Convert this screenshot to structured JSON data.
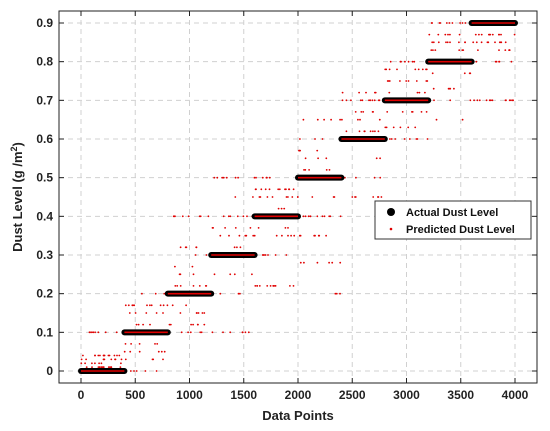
{
  "chart_data": {
    "type": "scatter",
    "title": "",
    "xlabel": "Data Points",
    "ylabel": "Dust Level (g /m",
    "ylabel_superscript": "2",
    "ylabel_suffix": ")",
    "xlim": [
      0,
      4000
    ],
    "ylim": [
      0,
      0.9
    ],
    "x_ticks": [
      0,
      500,
      1000,
      1500,
      2000,
      2500,
      3000,
      3500,
      4000
    ],
    "x_tick_labels": [
      "0",
      "500",
      "1000",
      "1500",
      "2000",
      "2500",
      "3000",
      "3500",
      "4000"
    ],
    "y_ticks": [
      0,
      0.1,
      0.2,
      0.3,
      0.4,
      0.5,
      0.6,
      0.7,
      0.8,
      0.9
    ],
    "y_tick_labels": [
      "0",
      "0.1",
      "0.2",
      "0.3",
      "0.4",
      "0.5",
      "0.6",
      "0.7",
      "0.8",
      "0.9"
    ],
    "grid": true,
    "legend_position": "right",
    "series": [
      {
        "name": "Actual Dust Level",
        "color": "#000000",
        "marker": "circle",
        "segments": [
          {
            "x_start": 0,
            "x_end": 400,
            "y": 0.0
          },
          {
            "x_start": 400,
            "x_end": 800,
            "y": 0.1
          },
          {
            "x_start": 800,
            "x_end": 1200,
            "y": 0.2
          },
          {
            "x_start": 1200,
            "x_end": 1600,
            "y": 0.3
          },
          {
            "x_start": 1600,
            "x_end": 2000,
            "y": 0.4
          },
          {
            "x_start": 2000,
            "x_end": 2400,
            "y": 0.5
          },
          {
            "x_start": 2400,
            "x_end": 2800,
            "y": 0.6
          },
          {
            "x_start": 2800,
            "x_end": 3200,
            "y": 0.7
          },
          {
            "x_start": 3200,
            "x_end": 3600,
            "y": 0.8
          },
          {
            "x_start": 3600,
            "x_end": 4000,
            "y": 0.9
          }
        ]
      },
      {
        "name": "Predicted Dust Level",
        "color": "#e00000",
        "marker": "dot",
        "segments": [
          {
            "x_start": 0,
            "x_end": 400,
            "center": 0.0,
            "scatter_values": [
              0.0,
              0.01,
              0.02,
              0.03,
              0.04,
              0.1
            ]
          },
          {
            "x_start": 400,
            "x_end": 800,
            "center": 0.1,
            "scatter_values": [
              0.0,
              0.03,
              0.05,
              0.07,
              0.1,
              0.12,
              0.15,
              0.17,
              0.2
            ]
          },
          {
            "x_start": 800,
            "x_end": 1200,
            "center": 0.2,
            "scatter_values": [
              0.1,
              0.12,
              0.15,
              0.17,
              0.2,
              0.22,
              0.25,
              0.27,
              0.3,
              0.32,
              0.4
            ]
          },
          {
            "x_start": 1200,
            "x_end": 1600,
            "center": 0.3,
            "scatter_values": [
              0.1,
              0.15,
              0.2,
              0.25,
              0.3,
              0.32,
              0.35,
              0.37,
              0.4,
              0.45,
              0.5
            ]
          },
          {
            "x_start": 1600,
            "x_end": 2000,
            "center": 0.4,
            "scatter_values": [
              0.22,
              0.3,
              0.35,
              0.37,
              0.4,
              0.42,
              0.45,
              0.47,
              0.5
            ]
          },
          {
            "x_start": 2000,
            "x_end": 2400,
            "center": 0.5,
            "scatter_values": [
              0.2,
              0.28,
              0.35,
              0.4,
              0.45,
              0.5,
              0.52,
              0.55,
              0.57,
              0.6,
              0.65
            ]
          },
          {
            "x_start": 2400,
            "x_end": 2800,
            "center": 0.6,
            "scatter_values": [
              0.45,
              0.5,
              0.55,
              0.6,
              0.62,
              0.65,
              0.67,
              0.7,
              0.72
            ]
          },
          {
            "x_start": 2800,
            "x_end": 3200,
            "center": 0.7,
            "scatter_values": [
              0.6,
              0.63,
              0.67,
              0.7,
              0.72,
              0.75,
              0.78,
              0.8
            ]
          },
          {
            "x_start": 3200,
            "x_end": 3600,
            "center": 0.8,
            "scatter_values": [
              0.65,
              0.7,
              0.73,
              0.77,
              0.8,
              0.83,
              0.85,
              0.87,
              0.9
            ]
          },
          {
            "x_start": 3600,
            "x_end": 4000,
            "center": 0.9,
            "scatter_values": [
              0.7,
              0.8,
              0.83,
              0.85,
              0.87,
              0.9
            ]
          }
        ]
      }
    ]
  }
}
